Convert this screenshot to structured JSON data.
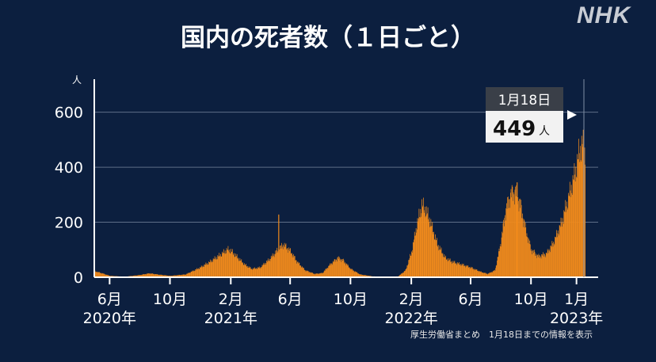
{
  "header": {
    "logo": "NHK",
    "title": "国内の死者数（１日ごと）"
  },
  "source_note": "厚生労働省まとめ　1月18日までの情報を表示",
  "callout": {
    "date": "1月18日",
    "value": "449",
    "unit": "人"
  },
  "colors": {
    "background": "#0c1f3f",
    "bar": "#f08a1c",
    "callout_date_bg": "#3a3f48",
    "callout_value_bg": "#f2f2f2"
  },
  "chart_data": {
    "type": "bar",
    "title": "国内の死者数（１日ごと）",
    "ylabel": "人",
    "ylim": [
      0,
      720
    ],
    "yticks": [
      0,
      200,
      400,
      600
    ],
    "grid": true,
    "x_range": [
      "2020-05-01",
      "2023-01-24"
    ],
    "x_ticks": [
      {
        "date": "2020-06-01",
        "label": "6月",
        "year": "2020年"
      },
      {
        "date": "2020-10-01",
        "label": "10月",
        "year": ""
      },
      {
        "date": "2021-02-01",
        "label": "2月",
        "year": "2021年"
      },
      {
        "date": "2021-06-01",
        "label": "6月",
        "year": ""
      },
      {
        "date": "2021-10-01",
        "label": "10月",
        "year": ""
      },
      {
        "date": "2022-02-01",
        "label": "2月",
        "year": "2022年"
      },
      {
        "date": "2022-06-01",
        "label": "6月",
        "year": ""
      },
      {
        "date": "2022-10-01",
        "label": "10月",
        "year": ""
      },
      {
        "date": "2023-01-01",
        "label": "1月",
        "year": "2023年"
      }
    ],
    "series": [
      {
        "values_by_date": [
          [
            "2020-05-01",
            22
          ],
          [
            "2020-05-15",
            15
          ],
          [
            "2020-06-01",
            5
          ],
          [
            "2020-07-01",
            2
          ],
          [
            "2020-08-01",
            8
          ],
          [
            "2020-08-20",
            14
          ],
          [
            "2020-09-10",
            9
          ],
          [
            "2020-10-01",
            5
          ],
          [
            "2020-11-01",
            10
          ],
          [
            "2020-12-01",
            35
          ],
          [
            "2020-12-20",
            55
          ],
          [
            "2021-01-10",
            80
          ],
          [
            "2021-01-25",
            100
          ],
          [
            "2021-02-01",
            95
          ],
          [
            "2021-02-15",
            70
          ],
          [
            "2021-03-01",
            45
          ],
          [
            "2021-03-15",
            30
          ],
          [
            "2021-04-01",
            35
          ],
          [
            "2021-04-20",
            65
          ],
          [
            "2021-05-05",
            95
          ],
          [
            "2021-05-18",
            118
          ],
          [
            "2021-06-01",
            95
          ],
          [
            "2021-06-15",
            55
          ],
          [
            "2021-07-01",
            25
          ],
          [
            "2021-07-20",
            12
          ],
          [
            "2021-08-05",
            15
          ],
          [
            "2021-08-20",
            45
          ],
          [
            "2021-09-05",
            70
          ],
          [
            "2021-09-15",
            62
          ],
          [
            "2021-10-01",
            30
          ],
          [
            "2021-10-20",
            10
          ],
          [
            "2021-11-15",
            3
          ],
          [
            "2021-12-15",
            2
          ],
          [
            "2022-01-05",
            3
          ],
          [
            "2022-01-20",
            25
          ],
          [
            "2022-02-01",
            90
          ],
          [
            "2022-02-12",
            190
          ],
          [
            "2022-02-22",
            260
          ],
          [
            "2022-03-01",
            245
          ],
          [
            "2022-03-10",
            205
          ],
          [
            "2022-03-25",
            120
          ],
          [
            "2022-04-10",
            70
          ],
          [
            "2022-04-25",
            55
          ],
          [
            "2022-05-15",
            45
          ],
          [
            "2022-06-01",
            35
          ],
          [
            "2022-06-20",
            20
          ],
          [
            "2022-07-05",
            12
          ],
          [
            "2022-07-20",
            25
          ],
          [
            "2022-08-01",
            130
          ],
          [
            "2022-08-10",
            240
          ],
          [
            "2022-08-20",
            300
          ],
          [
            "2022-08-30",
            310
          ],
          [
            "2022-09-08",
            270
          ],
          [
            "2022-09-20",
            170
          ],
          [
            "2022-10-01",
            100
          ],
          [
            "2022-10-15",
            75
          ],
          [
            "2022-11-01",
            85
          ],
          [
            "2022-11-15",
            125
          ],
          [
            "2022-12-01",
            195
          ],
          [
            "2022-12-15",
            285
          ],
          [
            "2022-12-28",
            370
          ],
          [
            "2023-01-06",
            450
          ],
          [
            "2023-01-12",
            480
          ],
          [
            "2023-01-18",
            449
          ]
        ]
      }
    ],
    "spikes": [
      {
        "date": "2021-05-08",
        "value": 228
      },
      {
        "date": "2022-09-02",
        "value": 345
      },
      {
        "date": "2023-01-14",
        "value": 503
      }
    ],
    "annotation": {
      "date": "2023-01-18",
      "label": "1月18日",
      "value": 449,
      "unit": "人"
    }
  }
}
